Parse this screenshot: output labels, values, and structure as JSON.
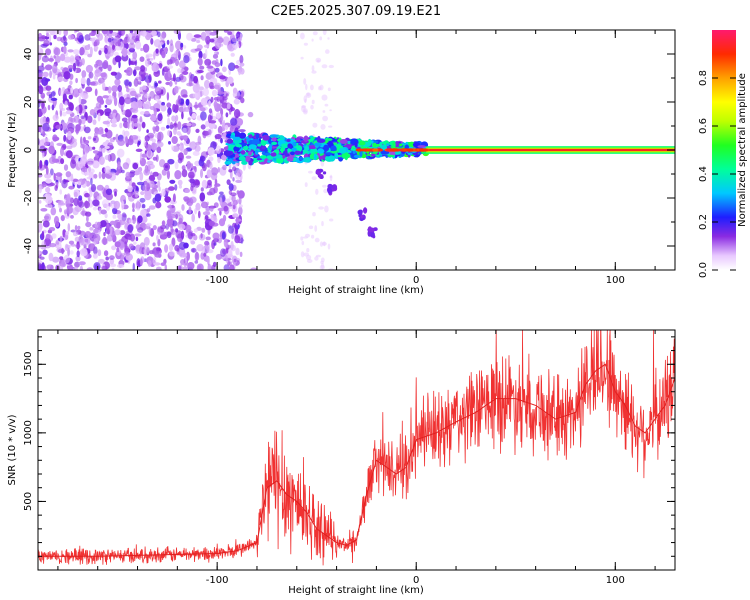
{
  "title": "C2E5.2025.307.09.19.E21",
  "chart_data": [
    {
      "type": "heatmap",
      "xlabel": "Height of straight line (km)",
      "ylabel": "Frequency (Hz)",
      "xlim": [
        -190,
        130
      ],
      "ylim": [
        -50,
        50
      ],
      "xticks": [
        -100,
        0,
        100
      ],
      "yticks": [
        -40,
        -20,
        0,
        20,
        40
      ],
      "colorbar": {
        "label": "Normalized spectral amplitude",
        "range": [
          0,
          1
        ],
        "ticks": [
          "0.0",
          "0.2",
          "0.4",
          "0.6",
          "0.8"
        ]
      },
      "features": [
        {
          "name": "noise",
          "x_range": [
            -190,
            -87
          ],
          "freq_range": [
            -50,
            50
          ],
          "amplitude": 0.15
        },
        {
          "name": "broadened-echo",
          "x_range": [
            -95,
            5
          ],
          "freq_range": [
            -5,
            8
          ],
          "amplitude": 0.5
        },
        {
          "name": "stable-line",
          "x_range": [
            5,
            130
          ],
          "freq_range": [
            -1,
            1
          ],
          "amplitude": 0.95
        },
        {
          "name": "tail-streak",
          "points": [
            [
              -48,
              -10
            ],
            [
              -43,
              -17
            ],
            [
              -27,
              -27
            ],
            [
              -22,
              -35
            ]
          ]
        }
      ]
    },
    {
      "type": "line",
      "xlabel": "Height of straight line (km)",
      "ylabel": "SNR (10 * v/v)",
      "xlim": [
        -190,
        130
      ],
      "ylim": [
        0,
        1750
      ],
      "xticks": [
        -100,
        0,
        100
      ],
      "yticks": [
        500,
        1000,
        1500
      ],
      "series": [
        {
          "name": "SNR",
          "color": "#f03232",
          "x": [
            -190,
            -160,
            -130,
            -100,
            -90,
            -80,
            -75,
            -70,
            -65,
            -60,
            -55,
            -50,
            -45,
            -40,
            -35,
            -30,
            -25,
            -20,
            -15,
            -10,
            -5,
            0,
            10,
            20,
            30,
            40,
            50,
            60,
            70,
            80,
            85,
            90,
            95,
            100,
            105,
            110,
            115,
            120,
            125,
            130
          ],
          "values": [
            100,
            100,
            110,
            120,
            140,
            200,
            600,
            650,
            550,
            500,
            420,
            300,
            250,
            200,
            180,
            220,
            550,
            800,
            750,
            700,
            750,
            950,
            1000,
            1080,
            1150,
            1250,
            1250,
            1200,
            1100,
            1150,
            1350,
            1450,
            1500,
            1300,
            1200,
            1050,
            1000,
            1100,
            1200,
            1400
          ]
        }
      ]
    }
  ]
}
